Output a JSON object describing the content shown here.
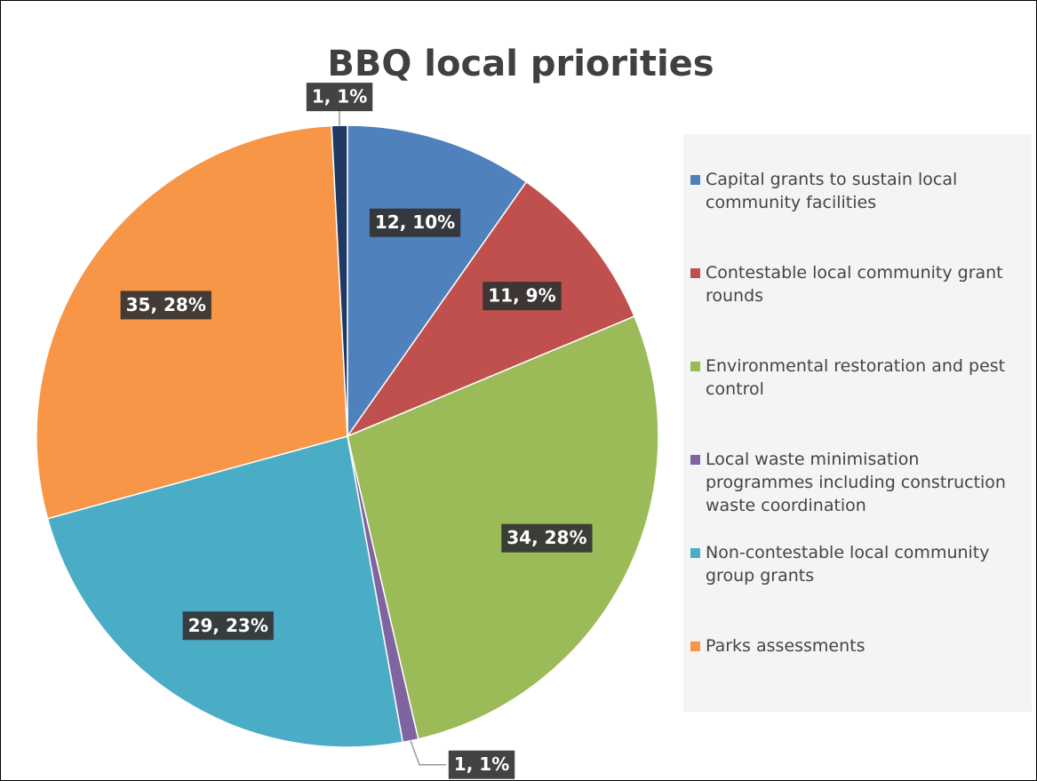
{
  "chart_data": {
    "type": "pie",
    "title": "BBQ local priorities",
    "categories": [
      "Capital grants to sustain local community facilities",
      "Contestable local community grant rounds",
      "Environmental restoration and pest control",
      "Local waste minimisation programmes including construction waste coordination",
      "Non-contestable local community group grants",
      "Parks assessments",
      null
    ],
    "values": [
      12,
      11,
      34,
      1,
      29,
      35,
      1
    ],
    "value_labels": [
      "12, 10%",
      "11, 9%",
      "34, 28%",
      "1, 1%",
      "29, 23%",
      "35, 28%",
      "1, 1%"
    ],
    "colors": [
      "#4f81bd",
      "#c0504d",
      "#9bbb59",
      "#8064a2",
      "#4bacc6",
      "#f79646",
      "#1f3864"
    ],
    "legend": "right"
  }
}
